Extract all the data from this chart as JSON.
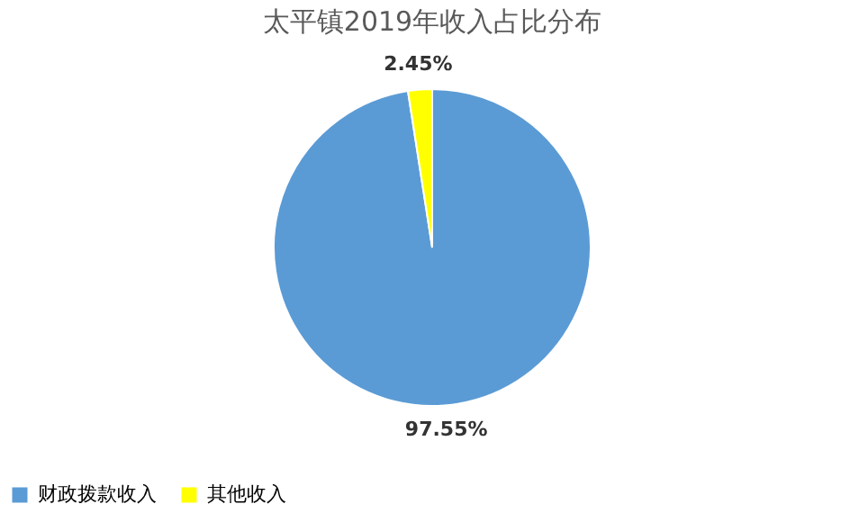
{
  "chart_data": {
    "type": "pie",
    "title": "太平镇2019年收入占比分布",
    "categories": [
      "财政拨款收入",
      "其他收入"
    ],
    "values": [
      97.55,
      2.45
    ],
    "colors": [
      "#5b9bd5",
      "#ffff00"
    ],
    "value_labels": [
      "97.55%",
      "2.45%"
    ],
    "legend": "bottom"
  }
}
